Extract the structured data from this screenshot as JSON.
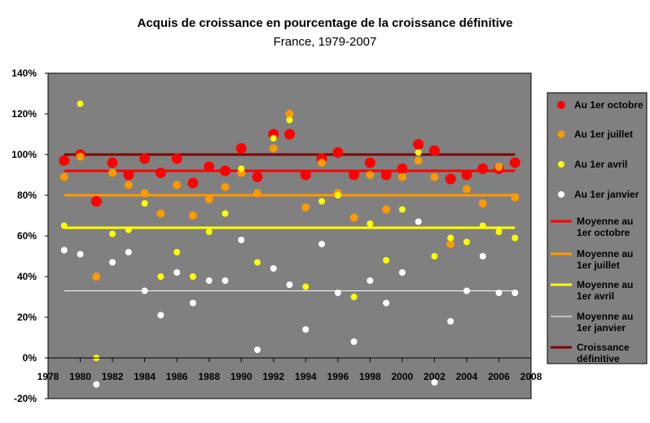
{
  "chart_data": {
    "type": "scatter",
    "title": "Acquis de croissance en pourcentage de la croissance définitive",
    "subtitle": "France, 1979-2007",
    "xlim": [
      1978,
      2008
    ],
    "ylim": [
      -0.2,
      1.4
    ],
    "x_ticks": [
      "1978",
      "1980",
      "1982",
      "1984",
      "1986",
      "1988",
      "1990",
      "1992",
      "1994",
      "1996",
      "1998",
      "2000",
      "2002",
      "2004",
      "2006",
      "2008"
    ],
    "y_ticks": [
      "140%",
      "120%",
      "100%",
      "80%",
      "60%",
      "40%",
      "20%",
      "0%",
      "-20%"
    ],
    "years": [
      1979,
      1980,
      1981,
      1982,
      1983,
      1984,
      1985,
      1986,
      1987,
      1988,
      1989,
      1990,
      1991,
      1992,
      1993,
      1994,
      1995,
      1996,
      1997,
      1998,
      1999,
      2000,
      2001,
      2002,
      2003,
      2004,
      2005,
      2006,
      2007
    ],
    "series": [
      {
        "name": "Au 1er octobre",
        "color": "#ff0000",
        "values": [
          0.97,
          1.0,
          0.77,
          0.96,
          0.9,
          0.98,
          0.91,
          0.98,
          0.86,
          0.94,
          0.92,
          1.03,
          0.89,
          1.1,
          1.1,
          0.9,
          0.98,
          1.01,
          0.9,
          0.96,
          0.9,
          0.93,
          1.05,
          1.02,
          0.88,
          0.9,
          0.93,
          0.93,
          0.96
        ]
      },
      {
        "name": "Au 1er juillet",
        "color": "#ff9900",
        "values": [
          0.89,
          0.99,
          0.4,
          0.91,
          0.85,
          0.81,
          0.71,
          0.85,
          0.7,
          0.78,
          0.84,
          0.91,
          0.81,
          1.03,
          1.2,
          0.74,
          0.96,
          0.81,
          0.69,
          0.9,
          0.73,
          0.89,
          0.97,
          0.89,
          0.56,
          0.83,
          0.76,
          0.94,
          0.79
        ]
      },
      {
        "name": "Au 1er avril",
        "color": "#ffff00",
        "values": [
          0.65,
          1.25,
          0.0,
          0.61,
          0.63,
          0.76,
          0.4,
          0.52,
          0.4,
          0.62,
          0.71,
          0.93,
          0.47,
          1.08,
          1.17,
          0.35,
          0.77,
          0.8,
          0.3,
          0.66,
          0.48,
          0.73,
          1.01,
          0.5,
          0.59,
          0.57,
          0.65,
          0.62,
          0.59
        ]
      },
      {
        "name": "Au 1er janvier",
        "color": "#ffffff",
        "values": [
          0.53,
          0.51,
          -0.13,
          0.47,
          0.52,
          0.33,
          0.21,
          0.42,
          0.27,
          0.38,
          0.38,
          0.58,
          0.04,
          0.44,
          0.36,
          0.14,
          0.56,
          0.32,
          0.08,
          0.38,
          0.27,
          0.42,
          0.67,
          -0.12,
          0.18,
          0.33,
          0.5,
          0.32,
          0.32
        ]
      }
    ],
    "lines": [
      {
        "name": "Moyenne au 1er octobre",
        "color": "#ff0000",
        "value": 0.92
      },
      {
        "name": "Moyenne au 1er juillet",
        "color": "#ff9900",
        "value": 0.8
      },
      {
        "name": "Moyenne au 1er avril",
        "color": "#ffff00",
        "value": 0.64
      },
      {
        "name": "Moyenne au 1er janvier",
        "color": "#ffffff",
        "value": 0.33
      },
      {
        "name": "Croissance définitive",
        "color": "#800000",
        "value": 1.0
      }
    ],
    "legend_position": "right",
    "grid": false,
    "plot_background": "#808080"
  }
}
